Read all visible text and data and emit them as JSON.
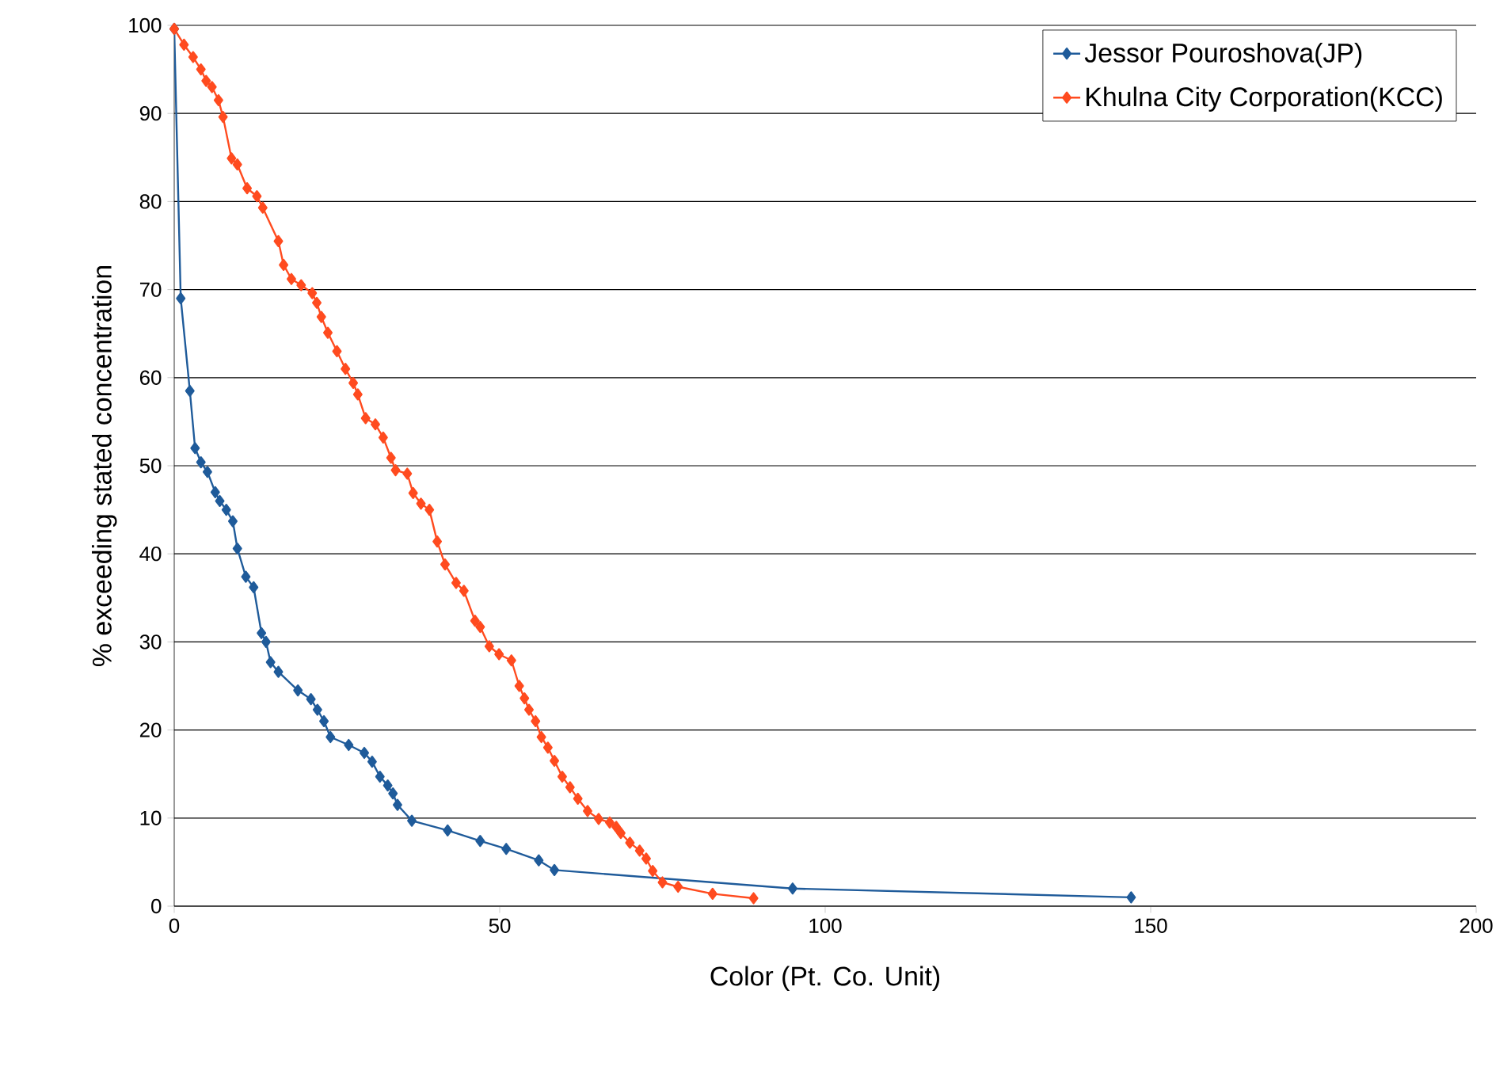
{
  "chart_data": {
    "type": "line",
    "xlabel": "Color (Pt. Co. Unit)",
    "ylabel": "% exceeding stated concentration",
    "xlim": [
      0,
      200
    ],
    "ylim": [
      0,
      100
    ],
    "xticks": [
      0,
      50,
      100,
      150,
      200
    ],
    "yticks": [
      0,
      10,
      20,
      30,
      40,
      50,
      60,
      70,
      80,
      90,
      100
    ],
    "grid": "y",
    "legend": "top right",
    "marker": "diamond",
    "line_style": "solid",
    "series": [
      {
        "name": "Jessor Pouroshova(JP)",
        "color": "#1f5b9a",
        "x": [
          0,
          1,
          2.4,
          3.2,
          4.1,
          5.1,
          6.3,
          7,
          8,
          9,
          9.7,
          11,
          12.2,
          13.4,
          14.1,
          14.8,
          16,
          19,
          21,
          22,
          23,
          24,
          26.8,
          29.2,
          30.4,
          31.6,
          32.8,
          33.6,
          34.3,
          36.5,
          42,
          47,
          51,
          56,
          58.4,
          95,
          147
        ],
        "values": [
          99.6,
          69,
          58.5,
          52,
          50.4,
          49.3,
          47,
          46,
          45,
          43.7,
          40.6,
          37.4,
          36.2,
          31,
          30,
          27.7,
          26.6,
          24.5,
          23.5,
          22.3,
          21,
          19.2,
          18.3,
          17.4,
          16.4,
          14.7,
          13.7,
          12.8,
          11.5,
          9.7,
          8.6,
          7.4,
          6.5,
          5.2,
          4.1,
          2,
          1
        ]
      },
      {
        "name": "Khulna City Corporation(KCC)",
        "color": "#ff4b1f",
        "x": [
          0,
          1.5,
          2.9,
          4.1,
          4.9,
          5.8,
          6.8,
          7.5,
          8.8,
          9.7,
          11.2,
          12.7,
          13.6,
          16,
          16.8,
          18,
          19.5,
          21.2,
          21.9,
          22.6,
          23.6,
          25,
          26.3,
          27.5,
          28.2,
          29.4,
          30.9,
          32.1,
          33.3,
          34,
          35.8,
          36.7,
          37.9,
          39.2,
          40.4,
          41.6,
          43.3,
          44.5,
          46.2,
          47,
          48.4,
          49.9,
          51.8,
          53,
          53.8,
          54.5,
          55.5,
          56.4,
          57.4,
          58.4,
          59.6,
          60.8,
          62,
          63.5,
          65.2,
          66.9,
          67.9,
          68.6,
          70,
          71.5,
          72.5,
          73.5,
          75,
          77.4,
          82.7,
          89
        ],
        "values": [
          99.6,
          97.8,
          96.4,
          95,
          93.7,
          93,
          91.5,
          89.6,
          84.9,
          84.2,
          81.5,
          80.6,
          79.3,
          75.5,
          72.8,
          71.2,
          70.5,
          69.6,
          68.5,
          66.9,
          65.1,
          63,
          61,
          59.4,
          58.1,
          55.4,
          54.7,
          53.2,
          50.9,
          49.5,
          49.1,
          46.9,
          45.7,
          45,
          41.4,
          38.8,
          36.7,
          35.8,
          32.4,
          31.7,
          29.5,
          28.6,
          27.9,
          25,
          23.6,
          22.3,
          21,
          19.2,
          18,
          16.5,
          14.7,
          13.5,
          12.2,
          10.8,
          9.9,
          9.5,
          9,
          8.3,
          7.2,
          6.3,
          5.4,
          4,
          2.7,
          2.2,
          1.4,
          0.9
        ]
      }
    ]
  }
}
